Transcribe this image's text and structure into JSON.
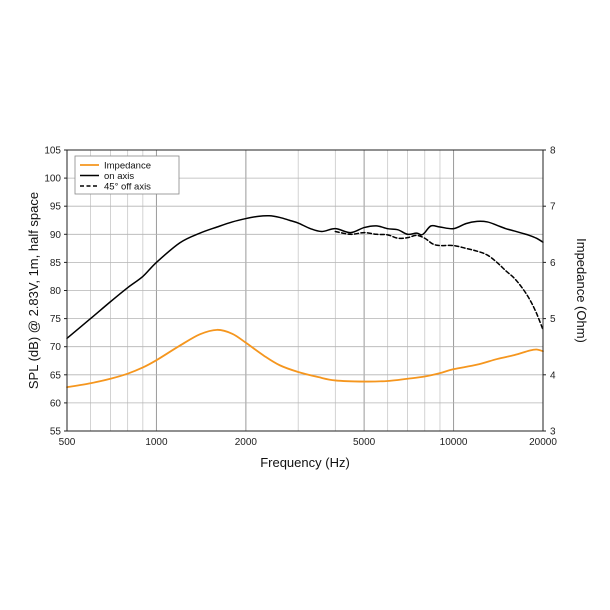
{
  "chart_data": {
    "type": "line",
    "xlabel": "Frequency (Hz)",
    "ylabel": "SPL (dB) @ 2.83V, 1m, half space",
    "y2label": "Impedance (Ohm)",
    "x_scale": "log",
    "xlim": [
      500,
      20000
    ],
    "ylim": [
      55,
      105
    ],
    "y2lim": [
      3,
      8
    ],
    "x_ticks": [
      500,
      1000,
      2000,
      5000,
      10000,
      20000
    ],
    "x_tick_labels": [
      "500",
      "1000",
      "2000",
      "5000",
      "10000",
      "20000"
    ],
    "y_ticks": [
      55,
      60,
      65,
      70,
      75,
      80,
      85,
      90,
      95,
      100,
      105
    ],
    "y_tick_labels": [
      "55",
      "60",
      "65",
      "70",
      "75",
      "80",
      "85",
      "90",
      "95",
      "100",
      "105"
    ],
    "y2_ticks": [
      3,
      4,
      5,
      6,
      7,
      8
    ],
    "y2_tick_labels": [
      "3",
      "4",
      "5",
      "6",
      "7",
      "8"
    ],
    "grid": true,
    "legend_position": "top-left",
    "series": [
      {
        "name": "Impedance",
        "axis": "right",
        "color": "#f5961e",
        "dash": "solid",
        "x": [
          500,
          600,
          700,
          800,
          900,
          1000,
          1200,
          1400,
          1600,
          1800,
          2000,
          2300,
          2600,
          3000,
          3500,
          4000,
          5000,
          6000,
          7000,
          8000,
          9000,
          10000,
          12000,
          14000,
          16000,
          18000,
          19000,
          20000
        ],
        "y": [
          3.78,
          3.85,
          3.93,
          4.02,
          4.13,
          4.26,
          4.52,
          4.72,
          4.8,
          4.73,
          4.57,
          4.34,
          4.17,
          4.05,
          3.96,
          3.9,
          3.88,
          3.89,
          3.93,
          3.97,
          4.03,
          4.1,
          4.18,
          4.28,
          4.35,
          4.43,
          4.45,
          4.42
        ]
      },
      {
        "name": "on axis",
        "axis": "left",
        "color": "#000000",
        "dash": "solid",
        "x": [
          500,
          600,
          700,
          800,
          900,
          1000,
          1200,
          1400,
          1600,
          1800,
          2000,
          2200,
          2400,
          2600,
          2800,
          3000,
          3300,
          3600,
          4000,
          4500,
          5000,
          5500,
          6000,
          6500,
          7000,
          7500,
          7800,
          8000,
          8400,
          9000,
          10000,
          11000,
          12000,
          13000,
          14000,
          15000,
          16000,
          17000,
          18000,
          19000,
          20000
        ],
        "y": [
          71.5,
          75.0,
          78.0,
          80.5,
          82.5,
          85.0,
          88.5,
          90.2,
          91.3,
          92.2,
          92.8,
          93.2,
          93.3,
          93.0,
          92.5,
          92.0,
          91.0,
          90.5,
          91.0,
          90.3,
          91.2,
          91.5,
          91.0,
          90.8,
          90.0,
          90.2,
          89.9,
          90.3,
          91.5,
          91.3,
          91.0,
          91.9,
          92.3,
          92.2,
          91.6,
          91.0,
          90.6,
          90.2,
          89.8,
          89.3,
          88.6
        ]
      },
      {
        "name": "45° off axis",
        "axis": "left",
        "color": "#000000",
        "dash": "dashed",
        "x": [
          4000,
          4500,
          5000,
          5500,
          6000,
          6500,
          7000,
          7500,
          8000,
          8500,
          9000,
          10000,
          11000,
          12000,
          13000,
          14000,
          15000,
          16000,
          17000,
          18000,
          19000,
          20000
        ],
        "y": [
          90.5,
          90.0,
          90.3,
          90.0,
          89.9,
          89.3,
          89.4,
          89.8,
          89.3,
          88.3,
          88.0,
          88.0,
          87.5,
          87.0,
          86.3,
          85.0,
          83.5,
          82.2,
          80.5,
          78.5,
          76.0,
          73.0
        ]
      }
    ]
  }
}
